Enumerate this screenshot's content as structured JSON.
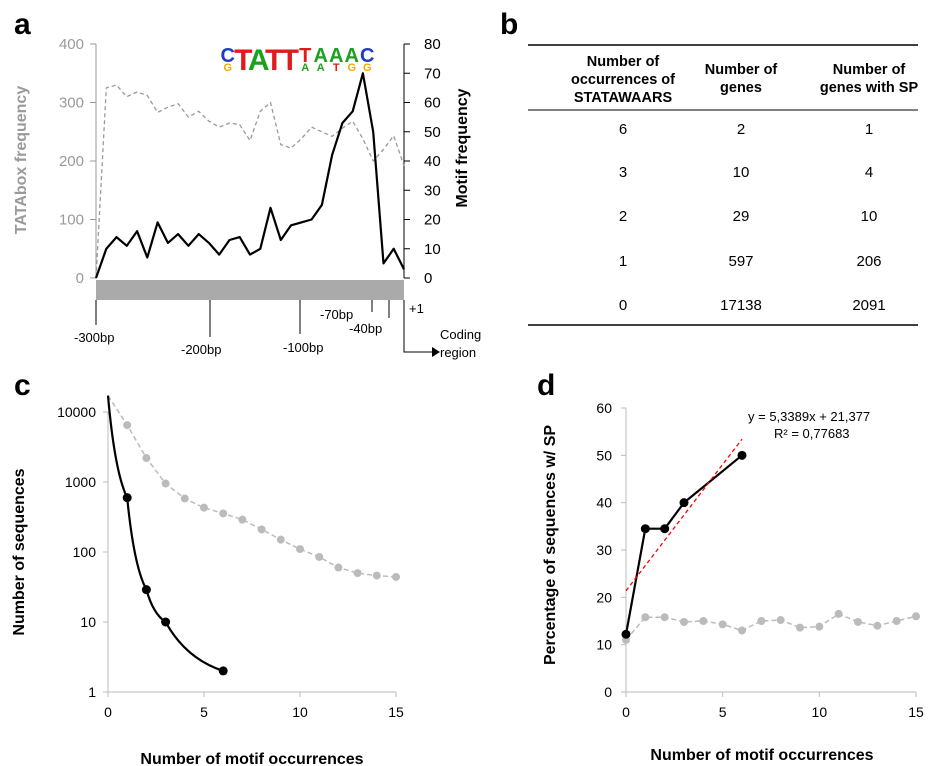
{
  "panel_labels": {
    "a": "a",
    "b": "b",
    "c": "c",
    "d": "d"
  },
  "colors": {
    "black": "#000000",
    "gray": "#999999",
    "light_gray": "#bbbbbb",
    "red": "#ff0000",
    "band": "#aaaaaa"
  },
  "logo": {
    "top": [
      "C",
      "T",
      "A",
      "T",
      "T",
      "T",
      "A",
      "A",
      "A",
      "C"
    ],
    "bottom": [
      "G",
      "",
      "",
      "",
      "",
      "A",
      "A",
      "T",
      "G",
      "G"
    ],
    "colors": {
      "A": "#1ea01e",
      "C": "#1f3dbd",
      "G": "#f2a900",
      "T": "#e01b1b"
    }
  },
  "promoter": {
    "positions": [
      "-300bp",
      "-200bp",
      "-100bp",
      "-70bp",
      "-40bp",
      "+1"
    ],
    "coding_line1": "Coding",
    "coding_line2": "region"
  },
  "table": {
    "headers": [
      [
        "Number of",
        "occurrences of",
        "STATAWAARS"
      ],
      [
        "Number of",
        "genes"
      ],
      [
        "Number of",
        "genes with SP"
      ]
    ],
    "rows": [
      [
        "6",
        "2",
        "1"
      ],
      [
        "3",
        "10",
        "4"
      ],
      [
        "2",
        "29",
        "10"
      ],
      [
        "1",
        "597",
        "206"
      ],
      [
        "0",
        "17138",
        "2091"
      ]
    ]
  },
  "equation": {
    "line1": "y = 5,3389x + 21,377",
    "line2": "R² = 0,77683"
  },
  "chart_data": [
    {
      "type": "line",
      "ylabel_left": "TATAbox  frequency",
      "ylabel_right": "Motif frequency",
      "left_ylim": [
        0,
        400
      ],
      "left_ticks": [
        "0",
        "100",
        "200",
        "300",
        "400"
      ],
      "right_ylim": [
        0,
        80
      ],
      "right_ticks": [
        "0",
        "10",
        "20",
        "30",
        "40",
        "50",
        "60",
        "70",
        "80"
      ],
      "x": [
        -300,
        -290,
        -280,
        -270,
        -260,
        -250,
        -240,
        -230,
        -220,
        -210,
        -200,
        -190,
        -180,
        -170,
        -160,
        -150,
        -140,
        -130,
        -120,
        -110,
        -100,
        -90,
        -80,
        -70,
        -60,
        -50,
        -40,
        -30,
        -20,
        -10,
        0
      ],
      "series": [
        {
          "axis": "left",
          "style": "dashed",
          "values": [
            0,
            325,
            330,
            310,
            318,
            312,
            283,
            292,
            298,
            275,
            285,
            268,
            258,
            265,
            262,
            235,
            285,
            300,
            228,
            222,
            238,
            258,
            250,
            242,
            256,
            268,
            238,
            200,
            220,
            243,
            192
          ]
        },
        {
          "axis": "right",
          "style": "solid",
          "values": [
            0,
            10,
            14,
            11,
            16,
            7,
            19,
            12,
            15,
            11,
            15,
            12,
            8,
            13,
            14,
            8,
            10,
            24,
            13,
            18,
            19,
            20,
            25,
            42,
            53,
            57,
            70,
            50,
            5,
            10,
            3
          ]
        }
      ]
    },
    {
      "type": "line",
      "xlabel": "Number of motif occurrences",
      "ylabel": "Number of sequences",
      "y_scale": "log",
      "xlim": [
        0,
        15
      ],
      "ylim": [
        1,
        10000
      ],
      "x_ticks": [
        "0",
        "5",
        "10",
        "15"
      ],
      "y_ticks": [
        "1",
        "10",
        "100",
        "1000",
        "10000"
      ],
      "series": [
        {
          "style": "solid",
          "color": "#000000",
          "x": [
            0,
            1,
            2,
            3,
            6
          ],
          "values": [
            17138,
            597,
            29,
            10,
            2
          ]
        },
        {
          "style": "dashed",
          "color": "#bbbbbb",
          "x": [
            1,
            2,
            3,
            4,
            5,
            6,
            7,
            8,
            9,
            10,
            11,
            12,
            13,
            14,
            15
          ],
          "values": [
            6500,
            2200,
            950,
            580,
            430,
            355,
            290,
            210,
            150,
            110,
            85,
            60,
            50,
            46,
            44
          ]
        }
      ]
    },
    {
      "type": "line",
      "xlabel": "Number of motif occurrences",
      "ylabel": "Percentage of sequences w/ SP",
      "xlim": [
        0,
        15
      ],
      "ylim": [
        0,
        60
      ],
      "x_ticks": [
        "0",
        "5",
        "10",
        "15"
      ],
      "y_ticks": [
        "0",
        "10",
        "20",
        "30",
        "40",
        "50",
        "60"
      ],
      "series": [
        {
          "style": "solid",
          "color": "#000000",
          "x": [
            0,
            1,
            2,
            3,
            6
          ],
          "values": [
            12.2,
            34.5,
            34.5,
            40,
            50
          ]
        },
        {
          "style": "dashed",
          "color": "#bbbbbb",
          "x": [
            0,
            1,
            2,
            3,
            4,
            5,
            6,
            7,
            8,
            9,
            10,
            11,
            12,
            13,
            14,
            15
          ],
          "values": [
            11,
            15.8,
            15.8,
            14.8,
            15,
            14.3,
            13,
            15,
            15.2,
            13.6,
            13.8,
            16.5,
            14.8,
            14,
            15,
            16
          ]
        }
      ],
      "trendline": {
        "slope": 5.3389,
        "intercept": 21.377,
        "color": "#ff0000",
        "x_range": [
          0,
          6
        ]
      }
    }
  ]
}
